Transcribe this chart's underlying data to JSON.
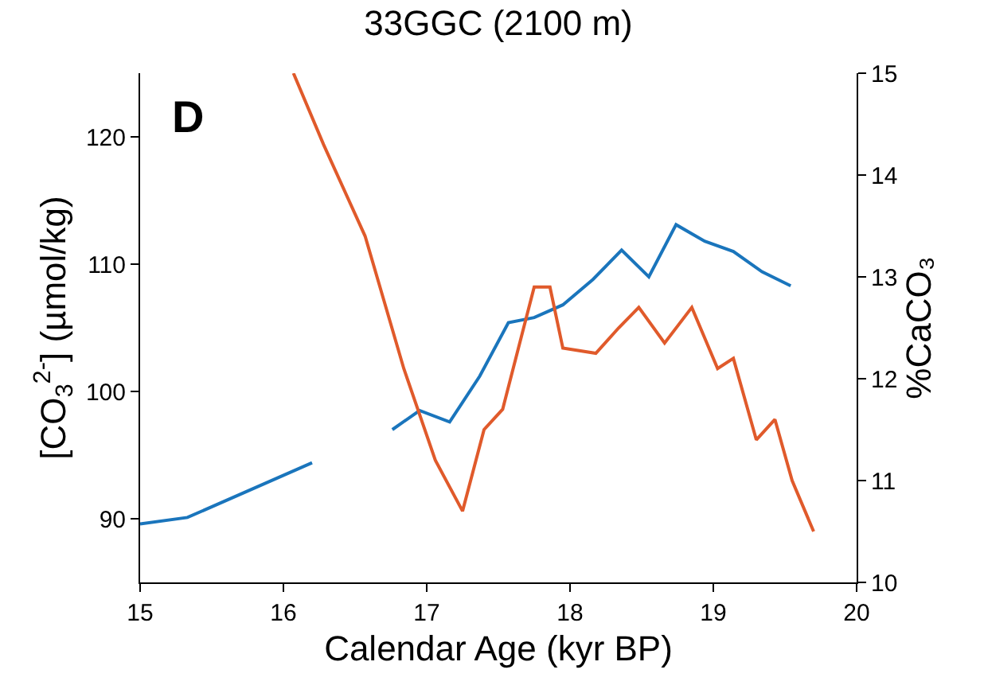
{
  "chart_data": {
    "type": "line",
    "title": "33GGC (2100 m)",
    "xlabel": "Calendar Age (kyr BP)",
    "ylabel": "[CO$_{3}$$^{2-}$] (µmol/kg)",
    "y2label": "%CaCO₃",
    "annotations": [
      "D"
    ],
    "xlim": [
      15,
      20
    ],
    "xticks": [
      15,
      16,
      17,
      18,
      19,
      20
    ],
    "ylim": [
      85,
      125
    ],
    "yticks": [
      90,
      100,
      110,
      120
    ],
    "y2lim": [
      10,
      15
    ],
    "y2ticks": [
      10,
      11,
      12,
      13,
      14,
      15
    ],
    "grid": false,
    "marker": "none",
    "line_style": "solid",
    "series": [
      {
        "color": "#1a75bc",
        "x": [
          15,
          15.33,
          16.2,
          16.5,
          16.76,
          16.95,
          17.16,
          17.37,
          17.57,
          17.75,
          17.95,
          18.16,
          18.36,
          18.55,
          18.74,
          18.94,
          19.14,
          19.34,
          19.54
        ],
        "values": [
          89.6,
          90.1,
          94.4,
          null,
          97,
          98.5,
          97.6,
          101.2,
          105.4,
          105.8,
          106.8,
          108.8,
          111.1,
          109,
          113.1,
          111.8,
          111,
          109.4,
          108.3
        ]
      },
      {
        "color": "#e05a2b",
        "axis": "y2",
        "x": [
          16.07,
          16.28,
          16.57,
          16.84,
          17.06,
          17.25,
          17.4,
          17.53,
          17.64,
          17.75,
          17.86,
          17.95,
          18.18,
          18.34,
          18.48,
          18.66,
          18.85,
          19.03,
          19.14,
          19.3,
          19.43,
          19.55,
          19.7
        ],
        "values": [
          15,
          14.3,
          13.4,
          12.1,
          11.2,
          10.7,
          11.5,
          11.7,
          12.3,
          12.9,
          12.9,
          12.3,
          12.25,
          12.5,
          12.7,
          12.35,
          12.7,
          12.1,
          12.2,
          11.4,
          11.6,
          11,
          10.5
        ]
      }
    ]
  }
}
